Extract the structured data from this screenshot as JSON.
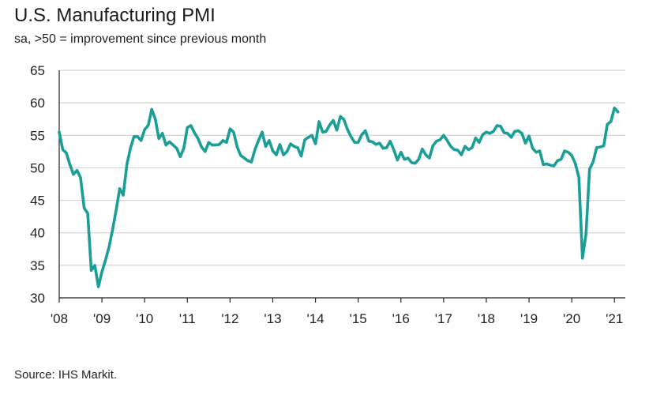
{
  "header": {
    "title": "U.S. Manufacturing PMI",
    "subtitle": "sa, >50 = improvement since previous month"
  },
  "footer": {
    "source": "Source: IHS Markit."
  },
  "colors": {
    "line": "#1a9e96",
    "grid": "#d4d4d4",
    "axis": "#222222"
  },
  "chart_data": {
    "type": "line",
    "title": "U.S. Manufacturing PMI",
    "subtitle": "sa, >50 = improvement since previous month",
    "xlabel": "",
    "ylabel": "",
    "ylim": [
      30,
      65
    ],
    "yticks": [
      30,
      35,
      40,
      45,
      50,
      55,
      60,
      65
    ],
    "xlim": [
      "2008-01",
      "2021-01"
    ],
    "xticks": [
      "'08",
      "'09",
      "'10",
      "'11",
      "'12",
      "'13",
      "'14",
      "'15",
      "'16",
      "'17",
      "'18",
      "'19",
      "'20",
      "'21"
    ],
    "grid": "horizontal",
    "legend": "none",
    "series": [
      {
        "x": [
          "2008-01",
          "2008-02",
          "2008-03",
          "2008-04",
          "2008-05",
          "2008-06",
          "2008-07",
          "2008-08",
          "2008-09",
          "2008-10",
          "2008-11",
          "2008-12",
          "2009-01",
          "2009-02",
          "2009-03",
          "2009-04",
          "2009-05",
          "2009-06",
          "2009-07",
          "2009-08",
          "2009-09",
          "2009-10",
          "2009-11",
          "2009-12",
          "2010-01",
          "2010-02",
          "2010-03",
          "2010-04",
          "2010-05",
          "2010-06",
          "2010-07",
          "2010-08",
          "2010-09",
          "2010-10",
          "2010-11",
          "2010-12",
          "2011-01",
          "2011-02",
          "2011-03",
          "2011-04",
          "2011-05",
          "2011-06",
          "2011-07",
          "2011-08",
          "2011-09",
          "2011-10",
          "2011-11",
          "2011-12",
          "2012-01",
          "2012-02",
          "2012-03",
          "2012-04",
          "2012-05",
          "2012-06",
          "2012-07",
          "2012-08",
          "2012-09",
          "2012-10",
          "2012-11",
          "2012-12",
          "2013-01",
          "2013-02",
          "2013-03",
          "2013-04",
          "2013-05",
          "2013-06",
          "2013-07",
          "2013-08",
          "2013-09",
          "2013-10",
          "2013-11",
          "2013-12",
          "2014-01",
          "2014-02",
          "2014-03",
          "2014-04",
          "2014-05",
          "2014-06",
          "2014-07",
          "2014-08",
          "2014-09",
          "2014-10",
          "2014-11",
          "2014-12",
          "2015-01",
          "2015-02",
          "2015-03",
          "2015-04",
          "2015-05",
          "2015-06",
          "2015-07",
          "2015-08",
          "2015-09",
          "2015-10",
          "2015-11",
          "2015-12",
          "2016-01",
          "2016-02",
          "2016-03",
          "2016-04",
          "2016-05",
          "2016-06",
          "2016-07",
          "2016-08",
          "2016-09",
          "2016-10",
          "2016-11",
          "2016-12",
          "2017-01",
          "2017-02",
          "2017-03",
          "2017-04",
          "2017-05",
          "2017-06",
          "2017-07",
          "2017-08",
          "2017-09",
          "2017-10",
          "2017-11",
          "2017-12",
          "2018-01",
          "2018-02",
          "2018-03",
          "2018-04",
          "2018-05",
          "2018-06",
          "2018-07",
          "2018-08",
          "2018-09",
          "2018-10",
          "2018-11",
          "2018-12",
          "2019-01",
          "2019-02",
          "2019-03",
          "2019-04",
          "2019-05",
          "2019-06",
          "2019-07",
          "2019-08",
          "2019-09",
          "2019-10",
          "2019-11",
          "2019-12",
          "2020-01",
          "2020-02",
          "2020-03",
          "2020-04",
          "2020-05",
          "2020-06",
          "2020-07",
          "2020-08",
          "2020-09",
          "2020-10",
          "2020-11",
          "2020-12",
          "2021-01",
          "2021-02"
        ],
        "values": [
          55.5,
          52.8,
          52.3,
          50.5,
          49.0,
          49.6,
          48.5,
          43.8,
          43.0,
          34.2,
          35.0,
          31.7,
          34.0,
          35.8,
          37.8,
          40.5,
          43.5,
          46.8,
          45.8,
          50.5,
          53.0,
          54.8,
          54.8,
          54.2,
          55.9,
          56.5,
          59.0,
          57.5,
          54.5,
          55.3,
          53.5,
          54.0,
          53.5,
          53.0,
          51.7,
          53.0,
          56.2,
          56.5,
          55.4,
          54.5,
          53.2,
          52.5,
          53.9,
          53.5,
          53.5,
          53.6,
          54.2,
          53.9,
          56.0,
          55.5,
          53.2,
          51.9,
          51.5,
          51.1,
          50.9,
          52.8,
          54.2,
          55.5,
          53.3,
          54.2,
          52.6,
          52.0,
          53.6,
          52.0,
          52.5,
          53.7,
          53.3,
          53.1,
          51.8,
          54.3,
          54.7,
          55.0,
          53.7,
          57.1,
          55.5,
          55.6,
          56.6,
          57.3,
          55.8,
          57.9,
          57.4,
          55.9,
          54.8,
          53.9,
          53.9,
          55.1,
          55.7,
          54.1,
          54.0,
          53.6,
          53.8,
          53.0,
          53.1,
          54.1,
          52.8,
          51.2,
          52.4,
          51.3,
          51.5,
          50.8,
          50.7,
          51.3,
          52.9,
          52.0,
          51.5,
          53.4,
          54.1,
          54.3,
          55.0,
          54.2,
          53.3,
          52.8,
          52.7,
          52.0,
          53.3,
          52.8,
          53.1,
          54.6,
          53.9,
          55.1,
          55.5,
          55.3,
          55.6,
          56.5,
          56.4,
          55.4,
          55.3,
          54.7,
          55.6,
          55.7,
          55.3,
          53.8,
          54.9,
          53.0,
          52.4,
          52.6,
          50.5,
          50.6,
          50.4,
          50.3,
          51.1,
          51.3,
          52.6,
          52.4,
          51.9,
          50.7,
          48.5,
          36.1,
          39.8,
          49.8,
          50.9,
          53.1,
          53.2,
          53.4,
          56.7,
          57.1,
          59.2,
          58.6
        ]
      }
    ]
  }
}
